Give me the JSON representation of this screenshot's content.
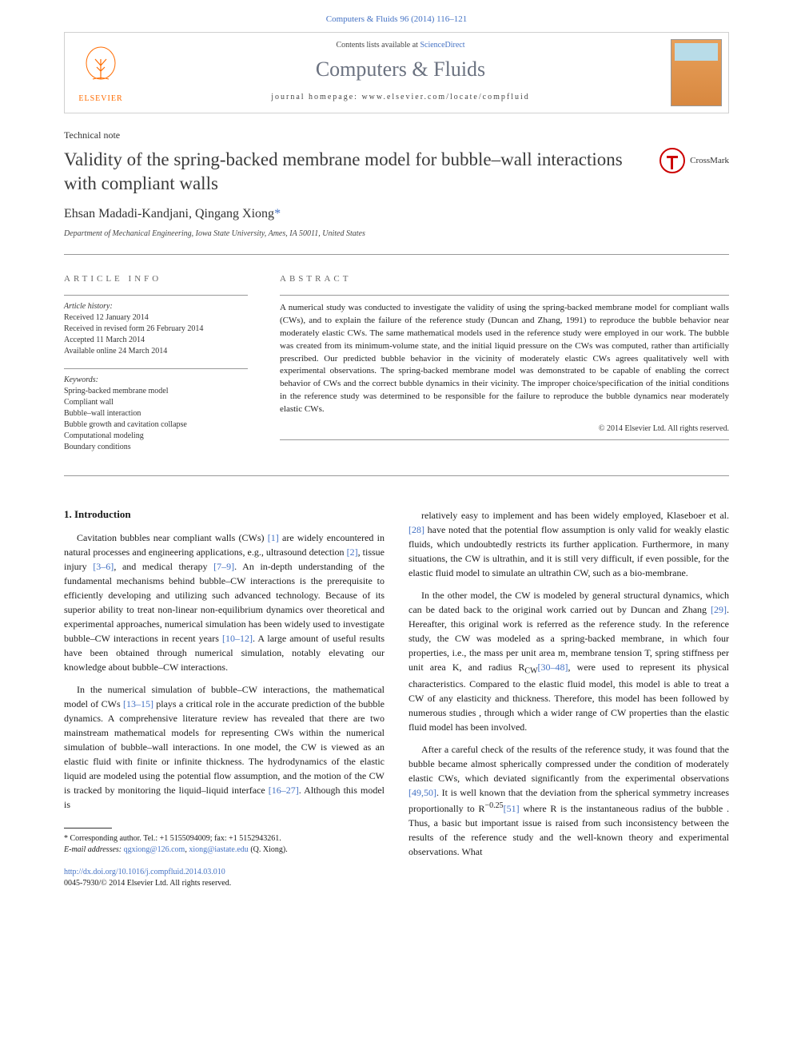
{
  "header": {
    "top_link": "Computers & Fluids 96 (2014) 116–121",
    "contents_prefix": "Contents lists available at ",
    "contents_link": "ScienceDirect",
    "journal_name": "Computers & Fluids",
    "homepage_prefix": "journal homepage: ",
    "homepage_url": "www.elsevier.com/locate/compfluid",
    "publisher_logo": "ELSEVIER"
  },
  "crossmark": {
    "label": "CrossMark"
  },
  "article": {
    "type": "Technical note",
    "title": "Validity of the spring-backed membrane model for bubble–wall interactions with compliant walls",
    "authors": "Ehsan Madadi-Kandjani, Qingang Xiong",
    "author_mark": "*",
    "affiliation": "Department of Mechanical Engineering, Iowa State University, Ames, IA 50011, United States"
  },
  "info": {
    "heading": "ARTICLE INFO",
    "history_label": "Article history:",
    "history": [
      "Received 12 January 2014",
      "Received in revised form 26 February 2014",
      "Accepted 11 March 2014",
      "Available online 24 March 2014"
    ],
    "keywords_label": "Keywords:",
    "keywords": [
      "Spring-backed membrane model",
      "Compliant wall",
      "Bubble–wall interaction",
      "Bubble growth and cavitation collapse",
      "Computational modeling",
      "Boundary conditions"
    ]
  },
  "abstract": {
    "heading": "ABSTRACT",
    "text": "A numerical study was conducted to investigate the validity of using the spring-backed membrane model for compliant walls (CWs), and to explain the failure of the reference study (Duncan and Zhang, 1991) to reproduce the bubble behavior near moderately elastic CWs. The same mathematical models used in the reference study were employed in our work. The bubble was created from its minimum-volume state, and the initial liquid pressure on the CWs was computed, rather than artificially prescribed. Our predicted bubble behavior in the vicinity of moderately elastic CWs agrees qualitatively well with experimental observations. The spring-backed membrane model was demonstrated to be capable of enabling the correct behavior of CWs and the correct bubble dynamics in their vicinity. The improper choice/specification of the initial conditions in the reference study was determined to be responsible for the failure to reproduce the bubble dynamics near moderately elastic CWs.",
    "copyright": "© 2014 Elsevier Ltd. All rights reserved."
  },
  "body": {
    "section_heading": "1. Introduction",
    "left_paragraphs": [
      {
        "t": "Cavitation bubbles near compliant walls (CWs) ",
        "r": "[1]",
        "t2": " are widely encountered in natural processes and engineering applications, e.g., ultrasound detection ",
        "r2": "[2]",
        "t3": ", tissue injury ",
        "r3": "[3–6]",
        "t4": ", and medical therapy ",
        "r4": "[7–9]",
        "t5": ". An in-depth understanding of the fundamental mechanisms behind bubble–CW interactions is the prerequisite to efficiently developing and utilizing such advanced technology. Because of its superior ability to treat non-linear non-equilibrium dynamics over theoretical and experimental approaches, numerical simulation has been widely used to investigate bubble–CW interactions in recent years ",
        "r5": "[10–12]",
        "t6": ". A large amount of useful results have been obtained through numerical simulation, notably elevating our knowledge about bubble–CW interactions."
      },
      {
        "t": "In the numerical simulation of bubble–CW interactions, the mathematical model of CWs ",
        "r": "[13–15]",
        "t2": " plays a critical role in the accurate prediction of the bubble dynamics. A comprehensive literature review has revealed that there are two mainstream mathematical models for representing CWs within the numerical simulation of bubble–wall interactions. In one model, the CW is viewed as an elastic fluid with finite or infinite thickness. The hydrodynamics of the elastic liquid are modeled using the potential flow assumption, and the motion of the CW is tracked by monitoring the liquid–liquid interface ",
        "r2": "[16–27]",
        "t3": ". Although this model is"
      }
    ],
    "right_paragraphs": [
      {
        "t": "relatively easy to implement and has been widely employed, Klaseboer et al. ",
        "r": "[28]",
        "t2": " have noted that the potential flow assumption is only valid for weakly elastic fluids, which undoubtedly restricts its further application. Furthermore, in many situations, the CW is ultrathin, and it is still very difficult, if even possible, for the elastic fluid model to simulate an ultrathin CW, such as a bio-membrane."
      },
      {
        "t": "In the other model, the CW is modeled by general structural dynamics, which can be dated back to the original work carried out by Duncan and Zhang ",
        "r": "[29]",
        "t2": ". Hereafter, this original work is referred as the reference study. In the reference study, the CW was modeled as a spring-backed membrane, in which four properties, i.e., the mass per unit area m, membrane tension T, spring stiffness per unit area K, and radius R",
        "sub": "CW",
        "t3": ", were used to represent its physical characteristics. Compared to the elastic fluid model, this model is able to treat a CW of any elasticity and thickness. Therefore, this model has been followed by numerous studies ",
        "r2": "[30–48]",
        "t4": ", through which a wider range of CW properties than the elastic fluid model has been involved."
      },
      {
        "t": "After a careful check of the results of the reference study, it was found that the bubble became almost spherically compressed under the condition of moderately elastic CWs, which deviated significantly from the experimental observations ",
        "r": "[49,50]",
        "t2": ". It is well known that the deviation from the spherical symmetry increases proportionally to R",
        "sup": "−0.25",
        "t3": " where R is the instantaneous radius of the bubble ",
        "r2": "[51]",
        "t4": ". Thus, a basic but important issue is raised from such inconsistency between the results of the reference study and the well-known theory and experimental observations. What"
      }
    ]
  },
  "footnote": {
    "corresponding": "* Corresponding author. Tel.: +1 5155094009; fax: +1 5152943261.",
    "email_label": "E-mail addresses: ",
    "email1": "qgxiong@126.com",
    "email_sep": ", ",
    "email2": "xiong@iastate.edu",
    "email_suffix": " (Q. Xiong)."
  },
  "doi": {
    "url": "http://dx.doi.org/10.1016/j.compfluid.2014.03.010",
    "issn": "0045-7930/© 2014 Elsevier Ltd. All rights reserved."
  },
  "colors": {
    "link": "#4472c4",
    "publisher": "#ff6c00",
    "text": "#1a1a1a",
    "muted": "#666666",
    "border": "#d0d0d0"
  }
}
